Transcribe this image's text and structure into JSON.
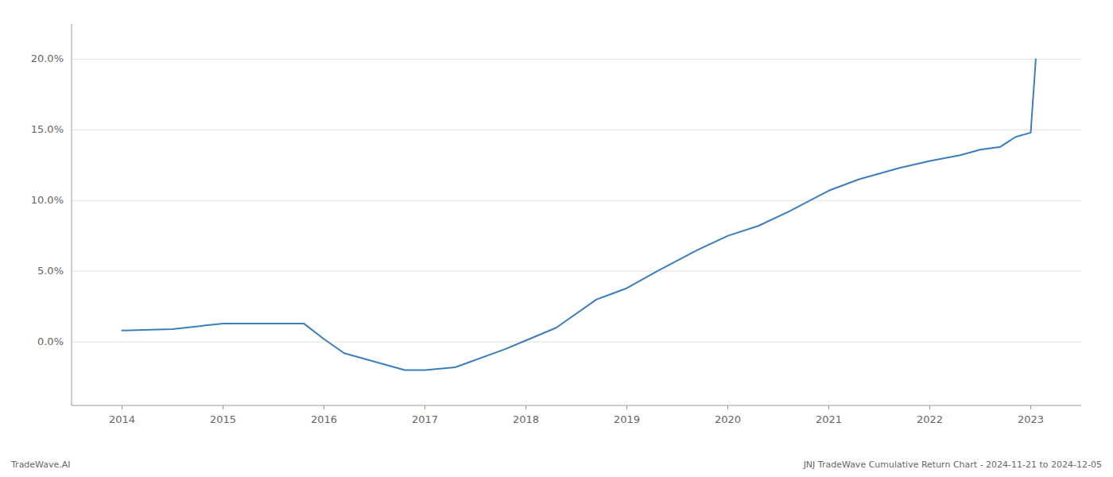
{
  "chart_data": {
    "type": "line",
    "x": [
      2014.0,
      2014.5,
      2015.0,
      2015.8,
      2016.0,
      2016.2,
      2016.8,
      2017.0,
      2017.3,
      2017.8,
      2018.0,
      2018.3,
      2018.7,
      2019.0,
      2019.3,
      2019.7,
      2020.0,
      2020.3,
      2020.6,
      2021.0,
      2021.3,
      2021.7,
      2022.0,
      2022.3,
      2022.5,
      2022.7,
      2022.85,
      2023.0,
      2023.05
    ],
    "values": [
      0.008,
      0.009,
      0.013,
      0.013,
      0.002,
      -0.008,
      -0.02,
      -0.02,
      -0.018,
      -0.005,
      0.001,
      0.01,
      0.03,
      0.038,
      0.05,
      0.065,
      0.075,
      0.082,
      0.092,
      0.107,
      0.115,
      0.123,
      0.128,
      0.132,
      0.136,
      0.138,
      0.145,
      0.148,
      0.2
    ],
    "color": "#3a7ebf",
    "xlim": [
      2013.5,
      2023.5
    ],
    "xticks": [
      2014,
      2015,
      2016,
      2017,
      2018,
      2019,
      2020,
      2021,
      2022,
      2023
    ],
    "ylim": [
      -0.045,
      0.225
    ],
    "yticks": [
      {
        "value": 0.0,
        "label": "0.0%"
      },
      {
        "value": 0.05,
        "label": "5.0%"
      },
      {
        "value": 0.1,
        "label": "10.0%"
      },
      {
        "value": 0.15,
        "label": "15.0%"
      },
      {
        "value": 0.2,
        "label": "20.0%"
      }
    ],
    "grid": true,
    "annotations": [
      "TradeWave.AI",
      "JNJ TradeWave Cumulative Return Chart - 2024-11-21 to 2024-12-05"
    ]
  }
}
